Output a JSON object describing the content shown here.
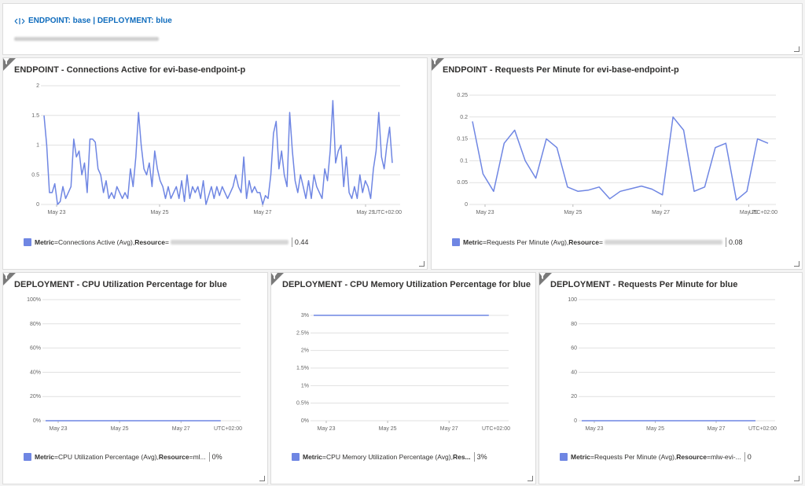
{
  "header": {
    "title": "ENDPOINT: base | DEPLOYMENT: blue"
  },
  "tiles": [
    {
      "title": "ENDPOINT - Connections Active for evi-base-endpoint-p",
      "legend_metric_key": "Metric",
      "legend_metric": "=Connections Active (Avg), ",
      "legend_resource_key": "Resource",
      "legend_resource": "=",
      "legend_value": "0.44"
    },
    {
      "title": "ENDPOINT - Requests Per Minute for evi-base-endpoint-p",
      "legend_metric_key": "Metric",
      "legend_metric": "=Requests Per Minute (Avg), ",
      "legend_resource_key": "Resource",
      "legend_resource": "=",
      "legend_value": "0.08"
    },
    {
      "title": "DEPLOYMENT - CPU Utilization Percentage for blue",
      "legend_metric_key": "Metric",
      "legend_metric": "=CPU Utilization Percentage (Avg), ",
      "legend_resource_key": "Resource",
      "legend_resource": "=ml...",
      "legend_value": "0%"
    },
    {
      "title": "DEPLOYMENT - CPU Memory Utilization Percentage for blue",
      "legend_metric_key": "Metric",
      "legend_metric": "=CPU Memory Utilization Percentage (Avg), ",
      "legend_resource_key": "Res...",
      "legend_resource": "",
      "legend_value": "3%"
    },
    {
      "title": "DEPLOYMENT - Requests Per Minute for blue",
      "legend_metric_key": "Metric",
      "legend_metric": "=Requests Per Minute (Avg), ",
      "legend_resource_key": "Resource",
      "legend_resource": "=mlw-evi-...",
      "legend_value": "0"
    }
  ],
  "colors": {
    "series": "#6f86e3",
    "grid": "#e1e1e1",
    "accent": "#0f6cbd"
  },
  "chart_data": [
    {
      "type": "line",
      "y_ticks": [
        "0",
        "0.5",
        "1",
        "1.5",
        "2"
      ],
      "ylim": [
        0,
        2
      ],
      "x_ticks": [
        "May 23",
        "May 25",
        "May 27",
        "May 29"
      ],
      "tz_label": "UTC+02:00",
      "series": [
        {
          "values": [
            1.5,
            1.0,
            0.2,
            0.2,
            0.35,
            0.0,
            0.05,
            0.3,
            0.1,
            0.2,
            0.3,
            1.1,
            0.8,
            0.9,
            0.5,
            0.7,
            0.2,
            1.1,
            1.1,
            1.05,
            0.6,
            0.5,
            0.2,
            0.4,
            0.1,
            0.2,
            0.1,
            0.3,
            0.2,
            0.1,
            0.2,
            0.1,
            0.6,
            0.3,
            0.8,
            1.55,
            1.0,
            0.6,
            0.5,
            0.7,
            0.3,
            0.9,
            0.6,
            0.4,
            0.3,
            0.1,
            0.3,
            0.1,
            0.2,
            0.3,
            0.1,
            0.4,
            0.05,
            0.5,
            0.1,
            0.3,
            0.2,
            0.3,
            0.1,
            0.4,
            0.0,
            0.15,
            0.3,
            0.1,
            0.3,
            0.15,
            0.3,
            0.2,
            0.1,
            0.2,
            0.3,
            0.5,
            0.3,
            0.2,
            0.8,
            0.1,
            0.4,
            0.2,
            0.3,
            0.2,
            0.2,
            0.0,
            0.15,
            0.1,
            0.5,
            1.2,
            1.4,
            0.6,
            0.9,
            0.5,
            0.3,
            1.55,
            0.9,
            0.4,
            0.2,
            0.5,
            0.3,
            0.1,
            0.4,
            0.1,
            0.5,
            0.3,
            0.2,
            0.1,
            0.6,
            0.4,
            0.9,
            1.75,
            0.7,
            0.9,
            1.0,
            0.3,
            0.8,
            0.2,
            0.1,
            0.3,
            0.1,
            0.5,
            0.2,
            0.4,
            0.3,
            0.1,
            0.6,
            0.9,
            1.55,
            0.8,
            0.6,
            1.0,
            1.3,
            0.7
          ]
        }
      ]
    },
    {
      "type": "line",
      "y_ticks": [
        "0",
        "0.05",
        "0.1",
        "0.15",
        "0.2",
        "0.25"
      ],
      "ylim": [
        0,
        0.25
      ],
      "x_ticks": [
        "May 23",
        "May 25",
        "May 27",
        "May 29"
      ],
      "tz_label": "UTC+02:00",
      "series": [
        {
          "values": [
            0.19,
            0.07,
            0.03,
            0.14,
            0.17,
            0.1,
            0.06,
            0.15,
            0.13,
            0.04,
            0.03,
            0.033,
            0.04,
            0.013,
            0.03,
            0.036,
            0.042,
            0.035,
            0.022,
            0.2,
            0.17,
            0.03,
            0.04,
            0.13,
            0.14,
            0.01,
            0.03,
            0.15,
            0.14
          ]
        }
      ]
    },
    {
      "type": "line",
      "y_ticks": [
        "0%",
        "20%",
        "40%",
        "60%",
        "80%",
        "100%"
      ],
      "ylim": [
        0,
        100
      ],
      "x_ticks": [
        "May 23",
        "May 25",
        "May 27"
      ],
      "tz_label": "UTC+02:00",
      "series": [
        {
          "values": [
            0,
            0
          ]
        }
      ]
    },
    {
      "type": "line",
      "y_ticks": [
        "0%",
        "0.5%",
        "1%",
        "1.5%",
        "2%",
        "2.5%",
        "3%"
      ],
      "ylim": [
        0,
        3
      ],
      "x_ticks": [
        "May 23",
        "May 25",
        "May 27"
      ],
      "tz_label": "UTC+02:00",
      "series": [
        {
          "values": [
            3,
            3
          ]
        }
      ]
    },
    {
      "type": "line",
      "y_ticks": [
        "0",
        "20",
        "40",
        "60",
        "80",
        "100"
      ],
      "ylim": [
        0,
        100
      ],
      "x_ticks": [
        "May 23",
        "May 25",
        "May 27"
      ],
      "tz_label": "UTC+02:00",
      "series": [
        {
          "values": [
            0,
            0
          ]
        }
      ]
    }
  ]
}
